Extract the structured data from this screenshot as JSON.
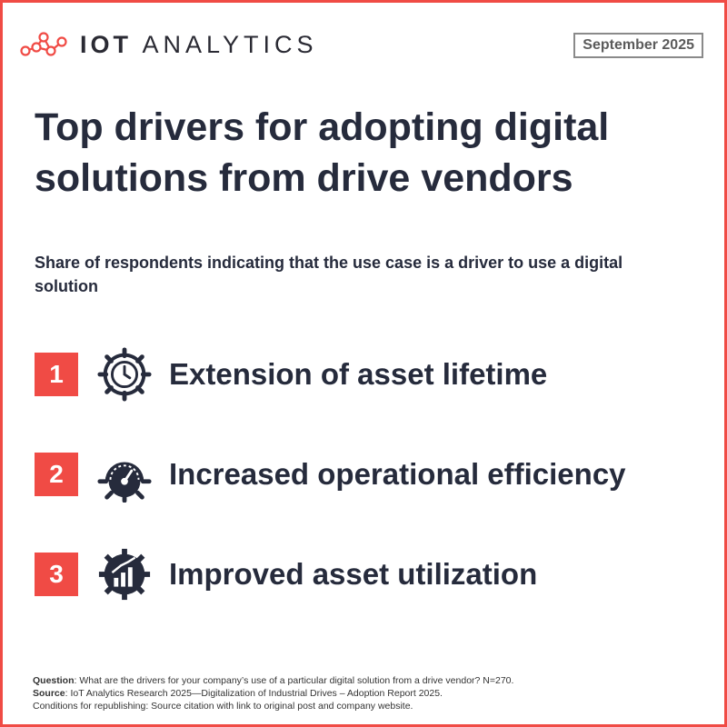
{
  "header": {
    "brand_strong": "IOT",
    "brand_light": "ANALYTICS",
    "logo_icon": "molecule-network-icon",
    "date": "September 2025"
  },
  "title": "Top drivers for adopting digital solutions from drive vendors",
  "subtitle": "Share of respondents indicating that the use case is a driver to use a digital solution",
  "drivers": [
    {
      "rank": "1",
      "label": "Extension of asset lifetime",
      "icon": "gear-clock-icon"
    },
    {
      "rank": "2",
      "label": "Increased operational efficiency",
      "icon": "gear-gauge-icon"
    },
    {
      "rank": "3",
      "label": "Improved asset utilization",
      "icon": "gear-chart-icon"
    }
  ],
  "footer": {
    "question_label": "Question",
    "question_text": ": What are the drivers for your company’s use of a particular digital solution from a drive vendor? N=270.",
    "source_label": "Source",
    "source_text": ": IoT Analytics Research 2025—Digitalization of Industrial Drives – Adoption Report 2025.",
    "conditions": "Conditions for republishing: Source citation with link to original post and company website."
  },
  "colors": {
    "accent": "#f04b45",
    "text": "#262b3c",
    "badge_border": "#8a8a8a"
  }
}
